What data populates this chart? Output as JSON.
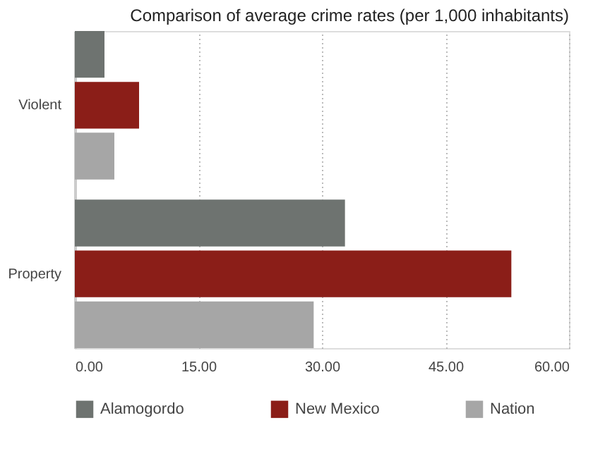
{
  "chart_data": {
    "type": "bar",
    "orientation": "horizontal",
    "title": "Comparison of average crime rates (per 1,000 inhabitants)",
    "categories": [
      "Violent",
      "Property"
    ],
    "series": [
      {
        "name": "Alamogordo",
        "color": "#6e7370",
        "values": [
          3.6,
          32.8
        ]
      },
      {
        "name": "New Mexico",
        "color": "#8b1e18",
        "values": [
          7.8,
          53.0
        ]
      },
      {
        "name": "Nation",
        "color": "#a6a6a6",
        "values": [
          4.8,
          29.0
        ]
      }
    ],
    "xlim": [
      0,
      60
    ],
    "xticks": [
      {
        "value": 0,
        "label": "0.00"
      },
      {
        "value": 15,
        "label": "15.00"
      },
      {
        "value": 30,
        "label": "30.00"
      },
      {
        "value": 45,
        "label": "45.00"
      },
      {
        "value": 60,
        "label": "60.00"
      }
    ],
    "grid": "x",
    "legend": "bottom"
  }
}
